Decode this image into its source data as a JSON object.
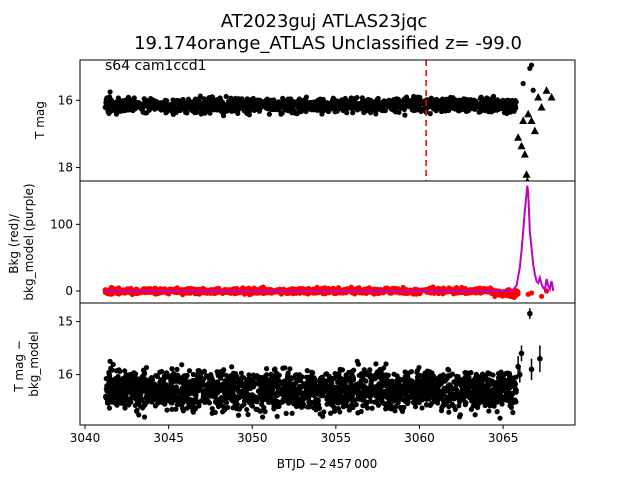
{
  "figure": {
    "title_line1": "AT2023guj  ATLAS23jqc",
    "title_line2": "19.174orange_ATLAS Unclassified z= -99.0",
    "xlabel": "BTJD −2 457 000"
  },
  "chart_data": [
    {
      "type": "scatter",
      "panel": "top",
      "annotation": "s64 cam1ccd1",
      "ylabel": "T mag",
      "y_inverted": true,
      "ylim": [
        18.4,
        14.8
      ],
      "xlim": [
        3039.7,
        3069.3
      ],
      "yticks": [
        16,
        18
      ],
      "vline": {
        "x": 3060.4,
        "color": "#ff0000",
        "style": "dashed"
      },
      "series": [
        {
          "marker": "circle",
          "color": "#000000",
          "baseline": {
            "x_start": 3041.2,
            "x_end": 3065.8,
            "level": 16.15,
            "scatter": 0.3
          },
          "extra_points": [
            [
              3041.5,
              15.75
            ],
            [
              3066.6,
              15.05
            ],
            [
              3066.7,
              14.95
            ],
            [
              3066.2,
              15.5
            ],
            [
              3066.8,
              15.7
            ]
          ]
        },
        {
          "marker": "triangle",
          "color": "#000000",
          "points": [
            [
              3065.9,
              17.1
            ],
            [
              3066.1,
              17.35
            ],
            [
              3066.3,
              17.6
            ],
            [
              3066.4,
              18.2
            ],
            [
              3066.5,
              16.4
            ],
            [
              3066.7,
              16.6
            ],
            [
              3066.9,
              16.9
            ],
            [
              3067.1,
              15.9
            ],
            [
              3067.3,
              16.2
            ],
            [
              3067.6,
              15.7
            ],
            [
              3067.9,
              15.9
            ],
            [
              3066.45,
              18.4
            ],
            [
              3066.2,
              16.6
            ]
          ]
        }
      ]
    },
    {
      "type": "line",
      "panel": "middle",
      "ylabel": "Bkg (red)/\nbkg_model (purple)",
      "ylim": [
        -18,
        165
      ],
      "xlim": [
        3039.7,
        3069.3
      ],
      "yticks": [
        0,
        100
      ],
      "series": [
        {
          "label": "Bkg",
          "color": "#ff0000",
          "marker": "circle",
          "baseline": {
            "x_start": 3041.2,
            "x_end": 3065.9,
            "level": 0,
            "scatter": 6
          }
        },
        {
          "label": "bkg_model",
          "color": "#bf00bf",
          "points": [
            [
              3041.2,
              0
            ],
            [
              3065.3,
              0
            ],
            [
              3065.6,
              2
            ],
            [
              3065.8,
              8
            ],
            [
              3066.0,
              35
            ],
            [
              3066.1,
              60
            ],
            [
              3066.2,
              90
            ],
            [
              3066.3,
              120
            ],
            [
              3066.4,
              145
            ],
            [
              3066.45,
              158
            ],
            [
              3066.5,
              148
            ],
            [
              3066.55,
              120
            ],
            [
              3066.6,
              90
            ],
            [
              3066.7,
              65
            ],
            [
              3066.8,
              40
            ],
            [
              3066.9,
              25
            ],
            [
              3067.0,
              15
            ],
            [
              3067.1,
              12
            ],
            [
              3067.2,
              20
            ],
            [
              3067.3,
              10
            ],
            [
              3067.4,
              5
            ],
            [
              3067.5,
              2
            ],
            [
              3067.6,
              18
            ],
            [
              3067.7,
              8
            ],
            [
              3067.8,
              3
            ],
            [
              3067.9,
              15
            ],
            [
              3068.0,
              0
            ]
          ]
        }
      ],
      "extra_red_points": [
        [
          3066.5,
          -5
        ],
        [
          3066.7,
          -3
        ],
        [
          3067.3,
          -8
        ],
        [
          3067.6,
          0
        ]
      ]
    },
    {
      "type": "scatter",
      "panel": "bottom",
      "ylabel": "T mag −\nbkg_model",
      "y_inverted": true,
      "ylim": [
        16.95,
        14.65
      ],
      "xlim": [
        3039.7,
        3069.3
      ],
      "yticks": [
        15,
        16
      ],
      "xticks": [
        3040,
        3045,
        3050,
        3055,
        3060,
        3065
      ],
      "series": [
        {
          "marker": "circle",
          "color": "#000000",
          "baseline": {
            "x_start": 3041.2,
            "x_end": 3065.8,
            "level": 16.3,
            "scatter": 0.55
          },
          "outliers": [
            [
              3041.5,
              15.75
            ],
            [
              3058.0,
              15.8
            ],
            [
              3060.4,
              16.05
            ],
            [
              3065.5,
              16.15
            ]
          ],
          "error_points": [
            {
              "x": 3066.6,
              "y": 14.85,
              "err": 0.1
            },
            {
              "x": 3066.1,
              "y": 15.6,
              "err": 0.15
            },
            {
              "x": 3065.9,
              "y": 15.85,
              "err": 0.2
            },
            {
              "x": 3067.2,
              "y": 15.7,
              "err": 0.25
            },
            {
              "x": 3066.7,
              "y": 15.9,
              "err": 0.2
            },
            {
              "x": 3066.0,
              "y": 16.0,
              "err": 0.15
            }
          ]
        }
      ]
    }
  ]
}
